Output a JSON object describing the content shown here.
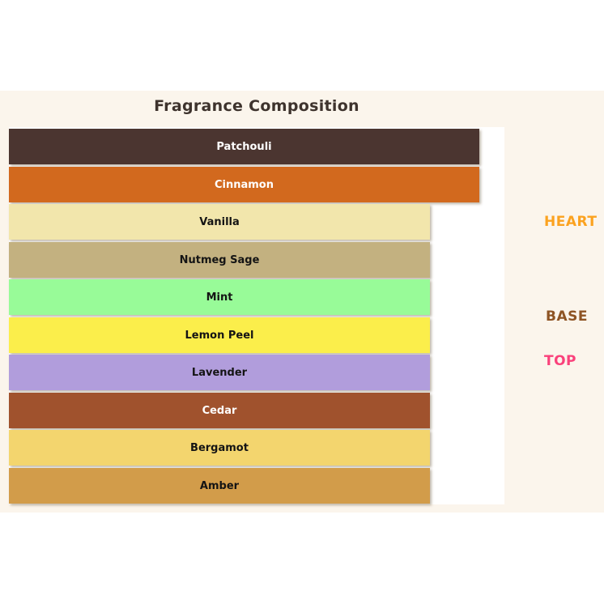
{
  "chart_data": {
    "type": "bar",
    "orientation": "horizontal",
    "title": "Fragrance Composition",
    "categories": [
      "Patchouli",
      "Cinnamon",
      "Vanilla",
      "Nutmeg Sage",
      "Mint",
      "Lemon Peel",
      "Lavender",
      "Cedar",
      "Bergamot",
      "Amber"
    ],
    "values": [
      95,
      95,
      85,
      85,
      85,
      85,
      85,
      85,
      85,
      85
    ],
    "xlim": [
      0,
      100
    ],
    "grid": false,
    "axes_visible": false,
    "bar_labels_inside": true,
    "bar_colors": [
      "#4B3530",
      "#D2691E",
      "#F2E6AC",
      "#C3B180",
      "#98FB98",
      "#FBEE4B",
      "#B19DDC",
      "#A0522D",
      "#F3D56E",
      "#D29C4A"
    ],
    "label_colors": [
      "#FFFFFF",
      "#FFFFFF",
      "#141414",
      "#141414",
      "#141414",
      "#141414",
      "#141414",
      "#FFFFFF",
      "#141414",
      "#141414"
    ],
    "annotations": [
      {
        "text": "HEART",
        "color": "#FBA21F",
        "position": "right-of-plot"
      },
      {
        "text": "BASE",
        "color": "#8E5424",
        "position": "right-of-plot"
      },
      {
        "text": "TOP",
        "color": "#FA417B",
        "position": "right-of-plot"
      }
    ]
  },
  "colors": {
    "page_bg": "#FFFFFF",
    "figure_bg": "#FBF5EC",
    "plot_bg": "#FFFFFF",
    "title_color": "#3E332D"
  }
}
